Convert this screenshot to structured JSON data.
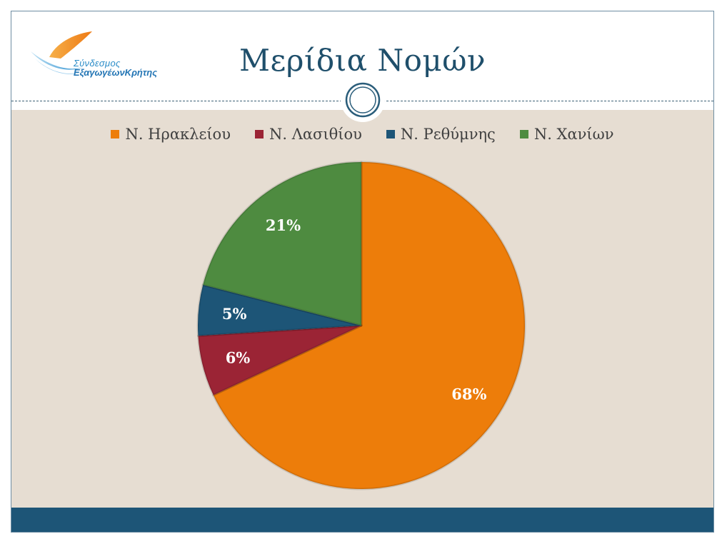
{
  "logo": {
    "line1": "Σύνδεσμος",
    "line2": "ΕξαγωγέωνΚρήτης"
  },
  "colors": {
    "header_bg": "#ffffff",
    "content_bg": "#e6ddd2",
    "footer_bg": "#1d5577",
    "title": "#1f4f6b"
  },
  "chart_data": {
    "type": "pie",
    "title": "Μερίδια Νομών",
    "legend_position": "top",
    "start_angle_deg": 0,
    "direction": "clockwise",
    "slices": [
      {
        "name": "Ν. Ηρακλείου",
        "value": 68,
        "label": "68%",
        "color": "#ed7d0a"
      },
      {
        "name": "Ν. Λασιθίου",
        "value": 6,
        "label": "6%",
        "color": "#9b2435"
      },
      {
        "name": "Ν. Ρεθύμνης",
        "value": 5,
        "label": "5%",
        "color": "#1d5577"
      },
      {
        "name": "Ν. Χανίων",
        "value": 21,
        "label": "21%",
        "color": "#4e8b40"
      }
    ]
  }
}
